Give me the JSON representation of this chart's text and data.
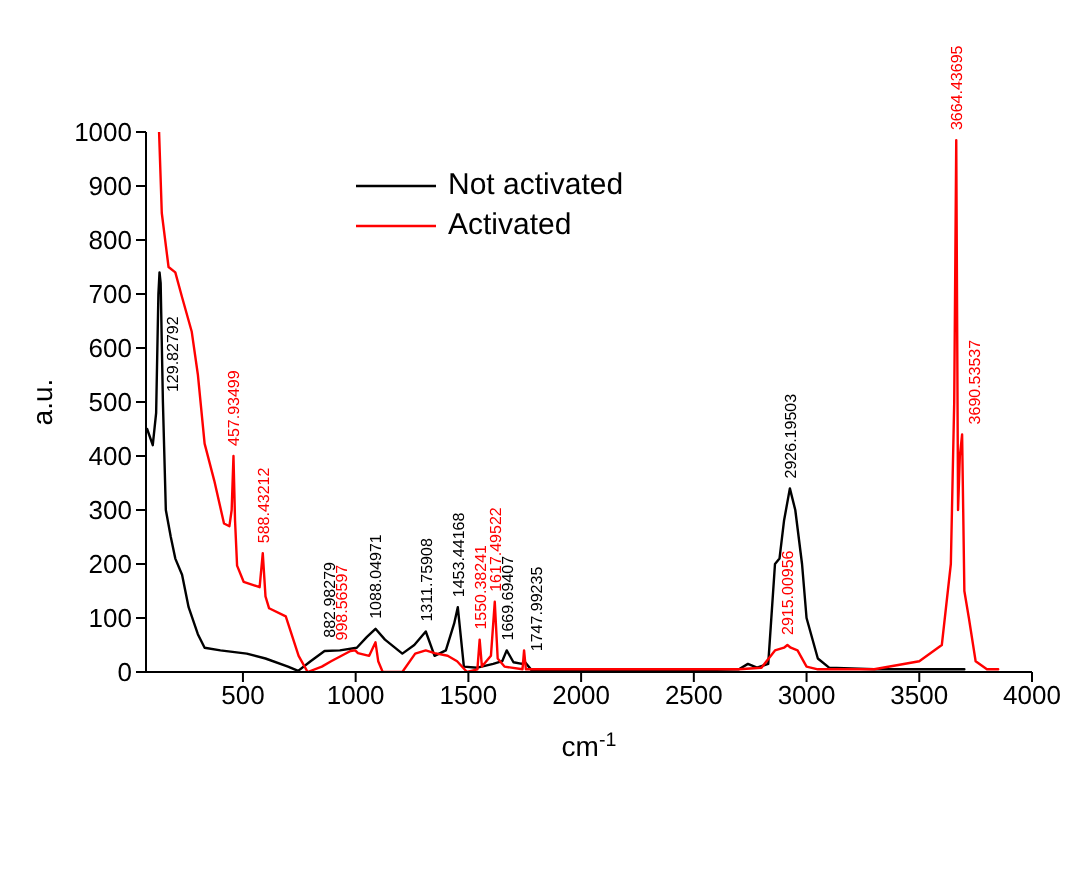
{
  "chart_data": {
    "type": "line",
    "xlabel": "cm$^{-1}$",
    "ylabel": "a.u.",
    "xlim": [
      70,
      4000
    ],
    "ylim": [
      0,
      1000
    ],
    "xticks": [
      500,
      1000,
      1500,
      2000,
      2500,
      3000,
      3500,
      4000
    ],
    "yticks": [
      0,
      100,
      200,
      300,
      400,
      500,
      600,
      700,
      800,
      900,
      1000
    ],
    "legend": "top",
    "grid": false,
    "marker": "none",
    "line_style": "solid",
    "series": [
      {
        "name": "Not activated",
        "color": "#000000",
        "x": [
          75,
          100,
          115,
          125,
          130,
          135,
          145,
          158,
          180,
          200,
          230,
          259,
          300,
          330,
          400,
          517,
          600,
          700,
          745,
          800,
          862,
          930,
          1005,
          1050,
          1088,
          1130,
          1207,
          1260,
          1311,
          1350,
          1400,
          1437,
          1453,
          1480,
          1540,
          1610,
          1650,
          1670,
          1700,
          1738,
          1748,
          1781,
          2000,
          2500,
          2700,
          2740,
          2780,
          2830,
          2860,
          2880,
          2900,
          2926,
          2950,
          2980,
          3000,
          3050,
          3100,
          3300,
          3600,
          3700
        ],
        "values": [
          450,
          420,
          480,
          700,
          740,
          720,
          500,
          300,
          250,
          210,
          180,
          120,
          70,
          45,
          40,
          34,
          25,
          10,
          2,
          20,
          39,
          40,
          45,
          65,
          80,
          60,
          34,
          50,
          75,
          30,
          40,
          90,
          120,
          10,
          8,
          15,
          20,
          40,
          18,
          15,
          20,
          3,
          3,
          3,
          5,
          15,
          8,
          15,
          200,
          210,
          280,
          340,
          300,
          200,
          100,
          25,
          8,
          5,
          5,
          5
        ]
      },
      {
        "name": "Activated",
        "color": "#ff0000",
        "x": [
          128,
          140,
          170,
          200,
          230,
          273,
          300,
          330,
          373,
          416,
          440,
          450,
          458,
          465,
          474,
          503,
          574,
          588,
          600,
          616,
          690,
          747,
          787,
          850,
          891,
          977,
          998,
          1010,
          1060,
          1088,
          1100,
          1120,
          1207,
          1264,
          1311,
          1350,
          1408,
          1450,
          1494,
          1540,
          1550,
          1560,
          1600,
          1617,
          1630,
          1660,
          1740,
          1747,
          1755,
          1800,
          2200,
          2700,
          2800,
          2860,
          2900,
          2915,
          2930,
          2960,
          3000,
          3050,
          3300,
          3500,
          3600,
          3640,
          3655,
          3664,
          3672,
          3680,
          3690,
          3700,
          3720,
          3750,
          3800,
          3850
        ],
        "values": [
          1000,
          850,
          750,
          740,
          694,
          630,
          551,
          423,
          354,
          275,
          270,
          300,
          400,
          280,
          197,
          167,
          157,
          220,
          140,
          118,
          103,
          30,
          0,
          10,
          20,
          39,
          40,
          35,
          30,
          55,
          20,
          0,
          0,
          34,
          40,
          35,
          30,
          20,
          0,
          5,
          60,
          10,
          30,
          130,
          25,
          10,
          5,
          40,
          5,
          5,
          5,
          5,
          8,
          40,
          45,
          50,
          45,
          40,
          10,
          5,
          5,
          20,
          50,
          200,
          500,
          985,
          300,
          400,
          440,
          150,
          100,
          20,
          5,
          5
        ]
      }
    ],
    "annotations": [
      {
        "text": "129.82792",
        "x": 130,
        "y": 500
      },
      {
        "text": "457.93499",
        "x": 458,
        "y": 400
      },
      {
        "text": "588.43212",
        "x": 588,
        "y": 220
      },
      {
        "text": "882.98279",
        "x": 883,
        "y": 45
      },
      {
        "text": "998.56597",
        "x": 998,
        "y": 40
      },
      {
        "text": "1088.04971",
        "x": 1088,
        "y": 80
      },
      {
        "text": "1311.75908",
        "x": 1311,
        "y": 75
      },
      {
        "text": "1453.44168",
        "x": 1453,
        "y": 120
      },
      {
        "text": "1550.38241",
        "x": 1550,
        "y": 60
      },
      {
        "text": "1617.49522",
        "x": 1617,
        "y": 130
      },
      {
        "text": "1669.69407",
        "x": 1670,
        "y": 40
      },
      {
        "text": "1747.99235",
        "x": 1748,
        "y": 20
      },
      {
        "text": "2915.00956",
        "x": 2915,
        "y": 50
      },
      {
        "text": "2926.19503",
        "x": 2926,
        "y": 340
      },
      {
        "text": "3664.43695",
        "x": 3664,
        "y": 985
      },
      {
        "text": "3690.53537",
        "x": 3690,
        "y": 440
      }
    ]
  }
}
